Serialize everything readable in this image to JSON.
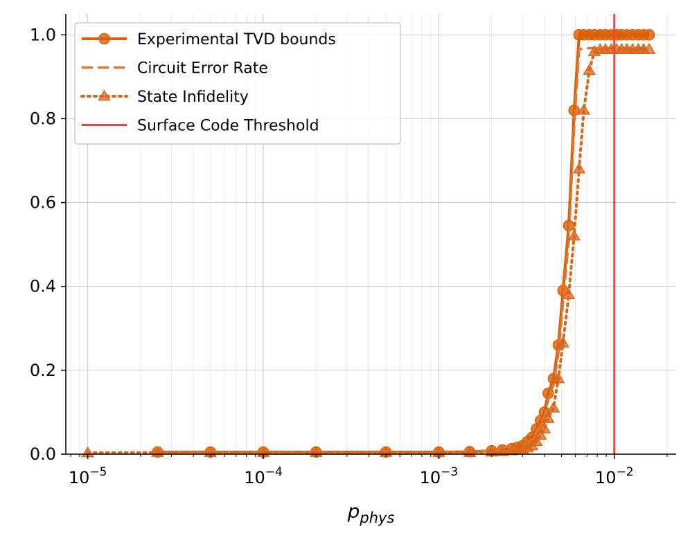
{
  "chart_data": {
    "type": "line",
    "xlabel": "p_phys",
    "xlabel_main": "p",
    "xlabel_sub": "phys",
    "ylabel": "",
    "xscale": "log",
    "xlim": [
      7.5e-06,
      0.0225
    ],
    "ylim": [
      0.0,
      1.05
    ],
    "grid": true,
    "legend_position": "upper-left",
    "y_ticks": [
      {
        "value": 0.0,
        "label": "0.0"
      },
      {
        "value": 0.2,
        "label": "0.2"
      },
      {
        "value": 0.4,
        "label": "0.4"
      },
      {
        "value": 0.6,
        "label": "0.6"
      },
      {
        "value": 0.8,
        "label": "0.8"
      },
      {
        "value": 1.0,
        "label": "1.0"
      }
    ],
    "x_ticks": [
      {
        "value": 1e-05,
        "base": "10",
        "exp": "−5"
      },
      {
        "value": 0.0001,
        "base": "10",
        "exp": "−4"
      },
      {
        "value": 0.001,
        "base": "10",
        "exp": "−3"
      },
      {
        "value": 0.01,
        "base": "10",
        "exp": "−2"
      }
    ],
    "x": [
      1e-05,
      2.5e-05,
      5e-05,
      0.0001,
      0.0002,
      0.0005,
      0.001,
      0.0015,
      0.002,
      0.0023,
      0.0026,
      0.0028,
      0.003,
      0.0032,
      0.0034,
      0.0036,
      0.0038,
      0.004,
      0.0042,
      0.0045,
      0.0048,
      0.0051,
      0.0055,
      0.0059,
      0.0063,
      0.0067,
      0.0072,
      0.0077,
      0.0083,
      0.0089,
      0.0096,
      0.0103,
      0.011,
      0.0118,
      0.0127,
      0.0137,
      0.0147,
      0.0158
    ],
    "series": [
      {
        "name": "Experimental TVD bounds",
        "style": "solid",
        "marker": "circle",
        "color": "#d95f02",
        "values": [
          null,
          0.005,
          0.005,
          0.005,
          0.005,
          0.005,
          0.005,
          0.006,
          0.008,
          0.01,
          0.013,
          0.016,
          0.02,
          0.03,
          0.04,
          0.06,
          0.08,
          0.1,
          0.145,
          0.18,
          0.26,
          0.39,
          0.545,
          0.82,
          1.0,
          1.0,
          1.0,
          1.0,
          1.0,
          1.0,
          1.0,
          1.0,
          1.0,
          1.0,
          1.0,
          1.0,
          1.0,
          1.0
        ]
      },
      {
        "name": "Circuit Error Rate",
        "style": "dashed",
        "marker": "none",
        "color": "#dd7733",
        "values": [
          null,
          0.005,
          0.005,
          0.005,
          0.005,
          0.005,
          0.005,
          0.006,
          0.008,
          0.01,
          0.013,
          0.016,
          0.02,
          0.028,
          0.036,
          0.052,
          0.07,
          0.09,
          0.13,
          0.165,
          0.24,
          0.36,
          0.51,
          0.78,
          0.965,
          0.968,
          0.968,
          0.968,
          0.968,
          0.968,
          0.968,
          0.968,
          0.968,
          0.968,
          0.968,
          0.968,
          0.968,
          0.968
        ]
      },
      {
        "name": "State Infidelity",
        "style": "dotted",
        "marker": "triangle",
        "color": "#d9661a",
        "values": [
          0.003,
          0.004,
          0.004,
          0.004,
          0.004,
          0.004,
          0.004,
          0.004,
          0.005,
          0.006,
          0.008,
          0.01,
          0.012,
          0.015,
          0.02,
          0.03,
          0.045,
          0.06,
          0.085,
          0.11,
          0.18,
          0.265,
          0.38,
          0.52,
          0.68,
          0.82,
          0.915,
          0.96,
          0.965,
          0.965,
          0.965,
          0.965,
          0.965,
          0.965,
          0.965,
          0.965,
          0.965,
          0.965
        ]
      }
    ],
    "vlines": [
      {
        "name": "Surface Code Threshold",
        "x": 0.01,
        "color": "#ef4444"
      }
    ],
    "legend": [
      {
        "label": "Experimental TVD bounds",
        "kind": "solid-circle",
        "color": "#d95f02"
      },
      {
        "label": "Circuit Error Rate",
        "kind": "dashed",
        "color": "#dd7733"
      },
      {
        "label": "State Infidelity",
        "kind": "dotted-triangle",
        "color": "#d9661a"
      },
      {
        "label": "Surface Code Threshold",
        "kind": "red-line",
        "color": "#ef4444"
      }
    ]
  }
}
